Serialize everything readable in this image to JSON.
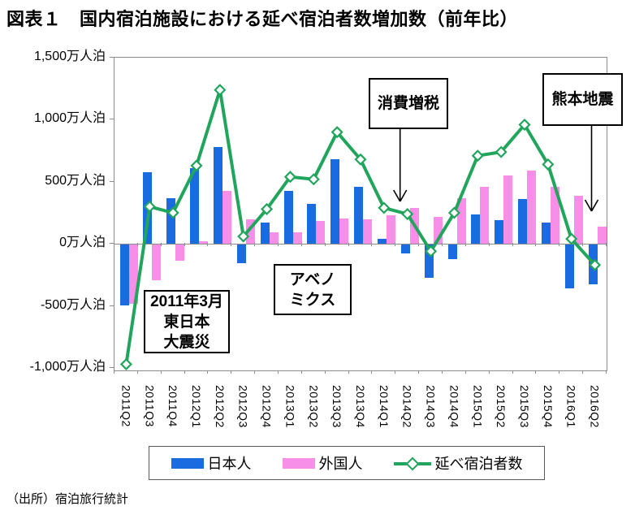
{
  "title": "図表１　国内宿泊施設における延べ宿泊者数増加数（前年比）",
  "source": "（出所）宿泊旅行統計",
  "colors": {
    "japanese_bar": "#1b6be0",
    "foreigner_bar": "#f78fe8",
    "total_line": "#21a55c",
    "axis": "#8c8c8c",
    "annotation_border": "#000000"
  },
  "y_axis": {
    "unit": "万人泊",
    "ticks": [
      {
        "label": "1,500万人泊",
        "value": 1500
      },
      {
        "label": "1,000万人泊",
        "value": 1000
      },
      {
        "label": "500万人泊",
        "value": 500
      },
      {
        "label": "0万人泊",
        "value": 0
      },
      {
        "label": "-500万人泊",
        "value": -500
      },
      {
        "label": "-1,000万人泊",
        "value": -1000
      }
    ]
  },
  "legend": {
    "items": [
      {
        "label": "日本人",
        "type": "bar",
        "color": "#1b6be0"
      },
      {
        "label": "外国人",
        "type": "bar",
        "color": "#f78fe8"
      },
      {
        "label": "延べ宿泊者数",
        "type": "line",
        "color": "#21a55c"
      }
    ]
  },
  "annotations": [
    {
      "id": "earthquake2011",
      "lines": [
        "2011年3月",
        "東日本",
        "大震災"
      ],
      "arrow": false
    },
    {
      "id": "abenomics",
      "lines": [
        "アベノ",
        "ミクス"
      ],
      "arrow": false
    },
    {
      "id": "tax",
      "lines": [
        "消費増税"
      ],
      "arrow": true
    },
    {
      "id": "kumamoto",
      "lines": [
        "熊本地震"
      ],
      "arrow": true
    }
  ],
  "chart_data": {
    "type": "bar",
    "title": "国内宿泊施設における延べ宿泊者数増加数（前年比）",
    "xlabel": "",
    "ylabel": "万人泊",
    "ylim": [
      -1000,
      1500
    ],
    "grid": false,
    "legend_position": "bottom",
    "categories": [
      "2011Q2",
      "2011Q3",
      "2011Q4",
      "2012Q1",
      "2012Q2",
      "2012Q3",
      "2012Q4",
      "2013Q1",
      "2013Q2",
      "2013Q3",
      "2013Q4",
      "2014Q1",
      "2014Q2",
      "2014Q3",
      "2014Q4",
      "2015Q1",
      "2015Q2",
      "2015Q3",
      "2015Q4",
      "2016Q1",
      "2016Q2"
    ],
    "series": [
      {
        "name": "日本人",
        "type": "bar",
        "color": "#1b6be0",
        "values": [
          -490,
          580,
          370,
          610,
          780,
          -150,
          170,
          430,
          320,
          680,
          460,
          40,
          -70,
          -270,
          -120,
          240,
          190,
          360,
          170,
          -350,
          -320
        ]
      },
      {
        "name": "外国人",
        "type": "bar",
        "color": "#f78fe8",
        "values": [
          -480,
          -290,
          -130,
          20,
          430,
          200,
          90,
          90,
          185,
          205,
          200,
          230,
          290,
          220,
          370,
          460,
          550,
          590,
          460,
          390,
          140
        ]
      },
      {
        "name": "延べ宿泊者数",
        "type": "line",
        "color": "#21a55c",
        "marker": "diamond",
        "values": [
          -970,
          300,
          250,
          630,
          1240,
          60,
          280,
          540,
          520,
          900,
          680,
          290,
          240,
          -60,
          250,
          710,
          740,
          960,
          640,
          40,
          -170
        ]
      }
    ]
  }
}
